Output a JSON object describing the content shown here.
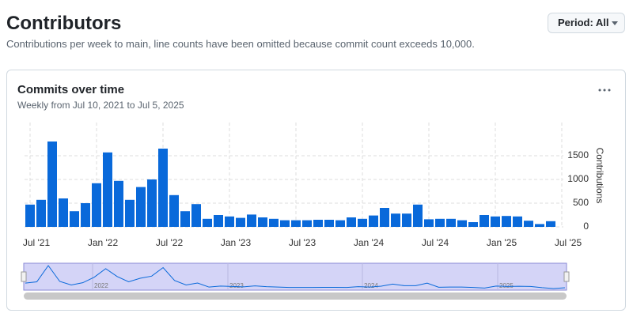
{
  "header": {
    "title": "Contributors",
    "subtitle": "Contributions per week to main, line counts have been omitted because commit count exceeds 10,000.",
    "period_button": "Period: All"
  },
  "card": {
    "title": "Commits over time",
    "subtitle": "Weekly from Jul 10, 2021 to Jul 5, 2025"
  },
  "chart_data": {
    "type": "bar",
    "color": "#0969da",
    "y_label": "Contributions",
    "categories": [
      null,
      null,
      null,
      null,
      null,
      null,
      null,
      null,
      null,
      null,
      null,
      null,
      null,
      null,
      null,
      null,
      null,
      null,
      null,
      null,
      null,
      null,
      null,
      null,
      null,
      null,
      null,
      null,
      null,
      null,
      null,
      null,
      null,
      null,
      null,
      null,
      null,
      null,
      null,
      null,
      null,
      null,
      null,
      null,
      null,
      null,
      null,
      null
    ],
    "values": [
      470,
      570,
      1800,
      600,
      330,
      500,
      920,
      1570,
      970,
      570,
      840,
      1000,
      1650,
      670,
      330,
      480,
      170,
      250,
      220,
      190,
      260,
      200,
      170,
      140,
      140,
      140,
      150,
      150,
      140,
      200,
      170,
      240,
      400,
      280,
      280,
      470,
      160,
      170,
      170,
      140,
      100,
      250,
      220,
      230,
      220,
      130,
      60,
      120
    ],
    "xticks": [
      {
        "value": 0,
        "label": "Jul '21"
      },
      {
        "value": 6,
        "label": "Jan '22"
      },
      {
        "value": 12,
        "label": "Jul '22"
      },
      {
        "value": 18,
        "label": "Jan '23"
      },
      {
        "value": 24,
        "label": "Jul '23"
      },
      {
        "value": 30,
        "label": "Jan '24"
      },
      {
        "value": 36,
        "label": "Jul '24"
      },
      {
        "value": 42,
        "label": "Jan '25"
      },
      {
        "value": 48,
        "label": "Jul '25"
      }
    ],
    "ylim": [
      0,
      2000
    ],
    "yticks": [
      0,
      500,
      1000,
      1500
    ],
    "grid": true,
    "navigator": {
      "labels": [
        "2022",
        "2023",
        "2024",
        "2025"
      ]
    }
  }
}
